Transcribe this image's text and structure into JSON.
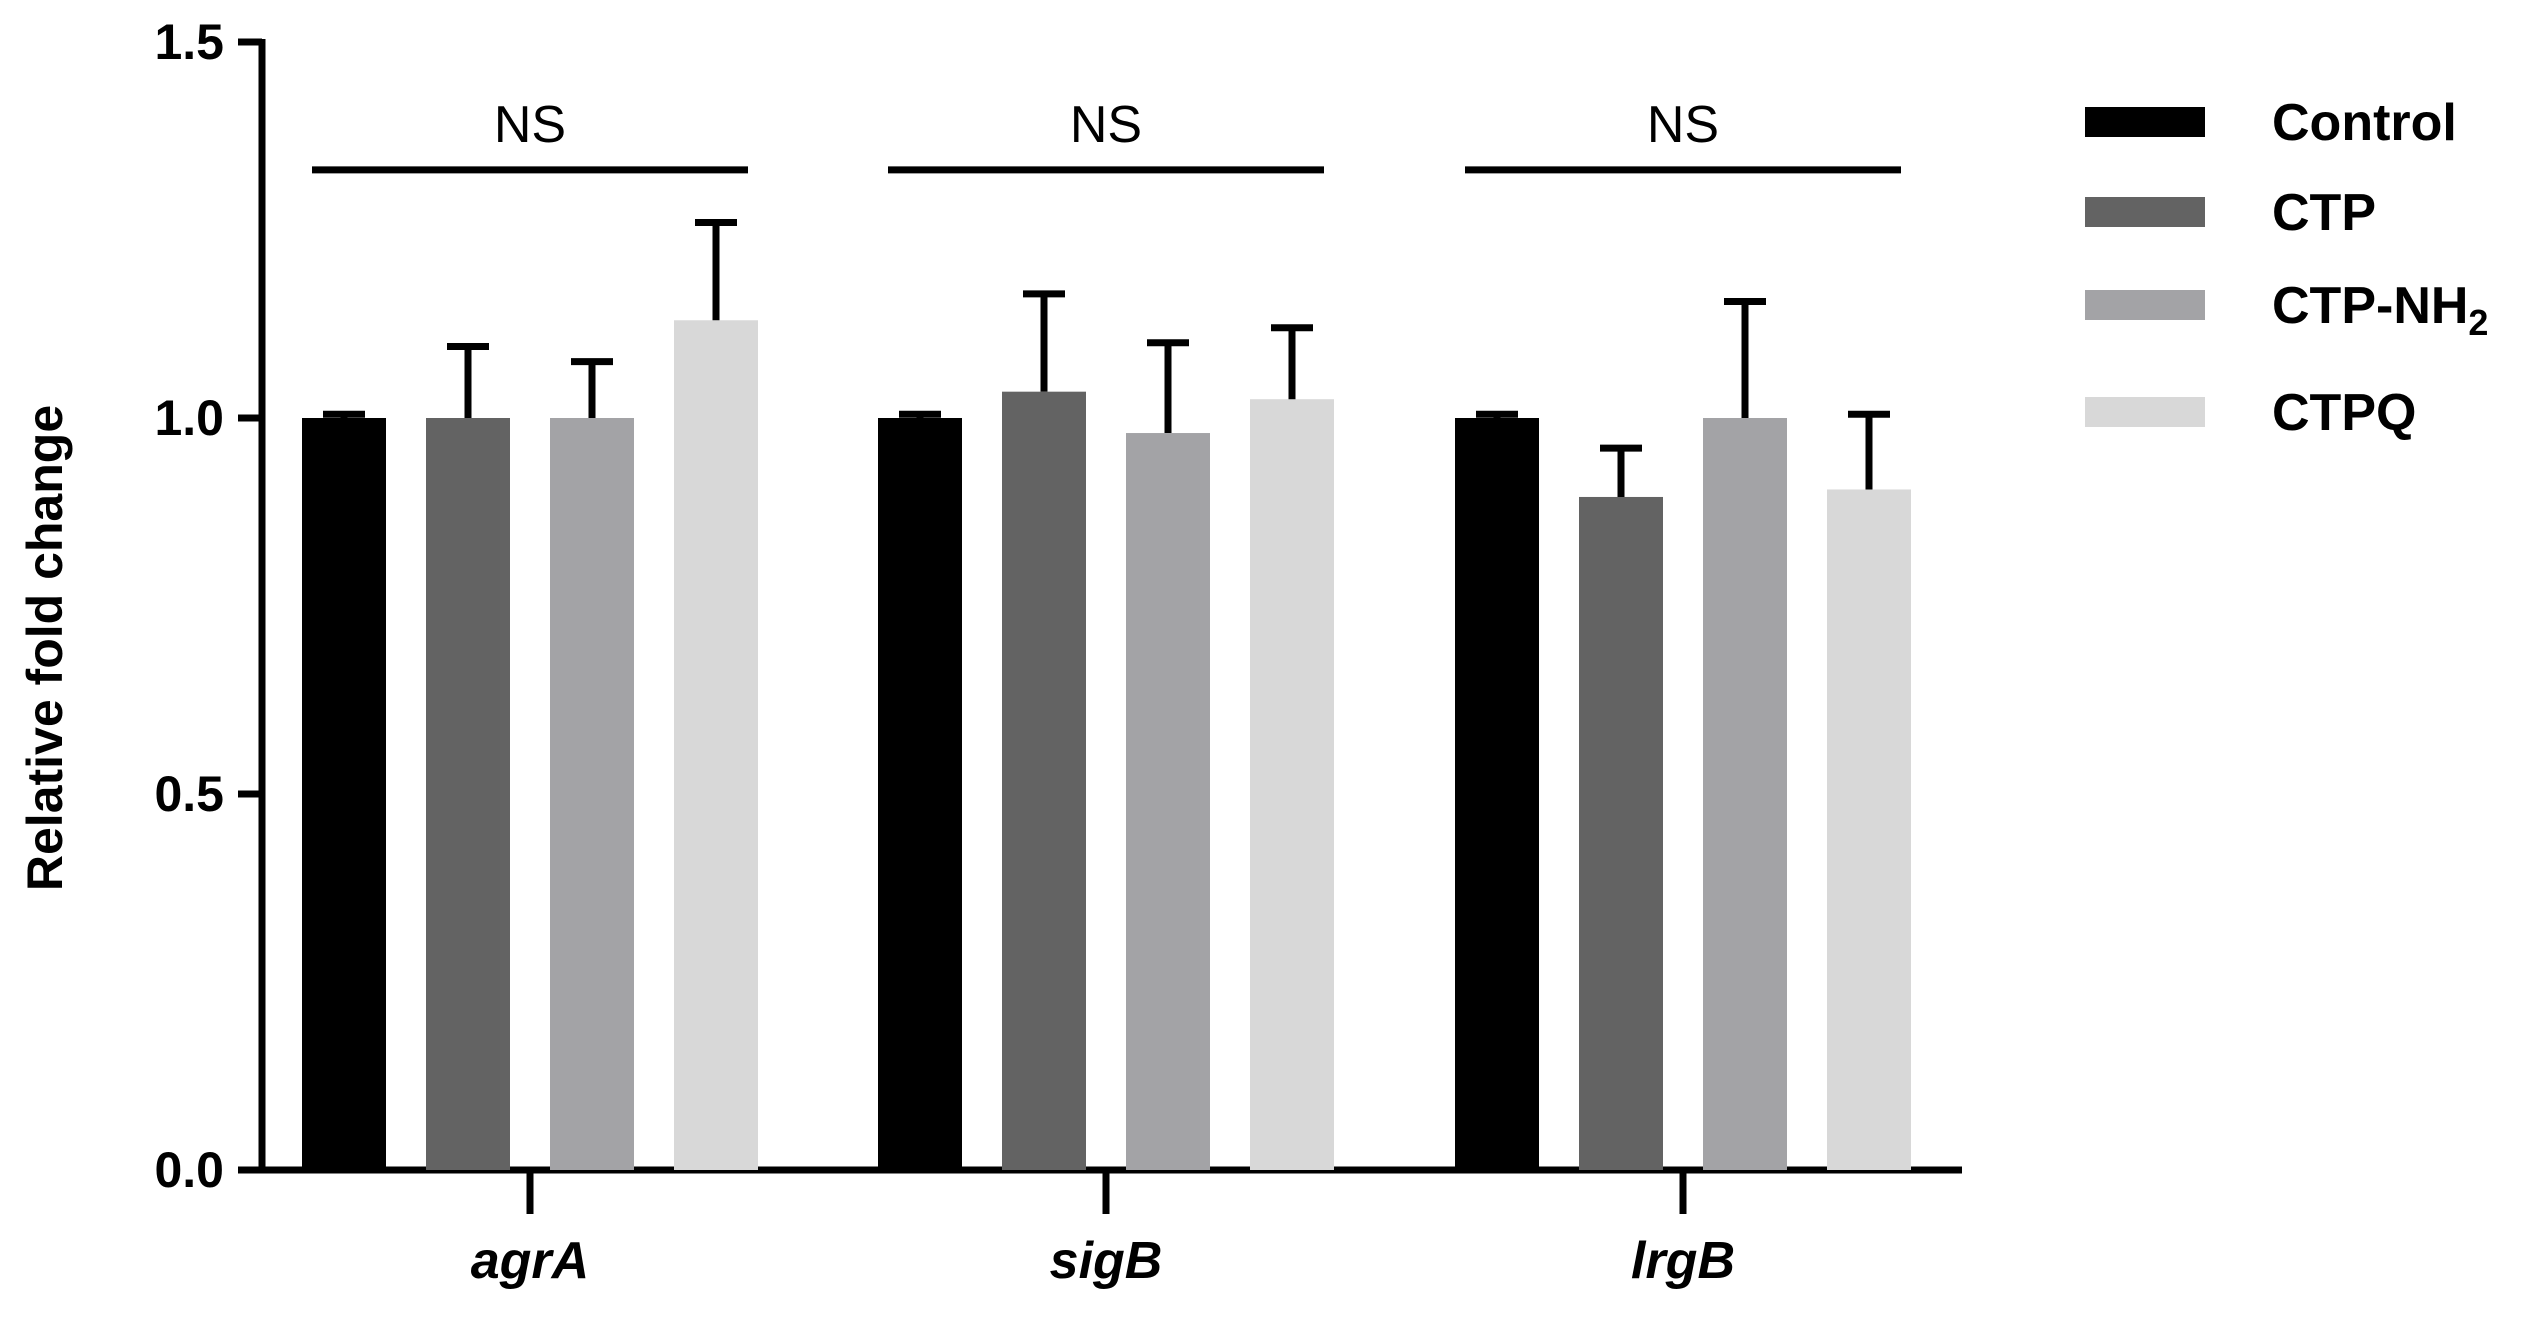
{
  "chart_data": {
    "type": "bar",
    "title": "",
    "xlabel": "",
    "ylabel": "Relative fold change",
    "ylim": [
      0,
      1.5
    ],
    "yticks": [
      0.0,
      0.5,
      1.0,
      1.5
    ],
    "ytick_labels": [
      "0.0",
      "0.5",
      "1.0",
      "1.5"
    ],
    "grid": false,
    "legend_position": "top-right",
    "categories": [
      "agrA",
      "sigB",
      "lrgB"
    ],
    "series": [
      {
        "name": "Control",
        "color": "#000000",
        "values": [
          1.0,
          1.0,
          1.0
        ],
        "errors": [
          0.005,
          0.005,
          0.005
        ]
      },
      {
        "name": "CTP",
        "color": "#636363",
        "values": [
          1.0,
          1.035,
          0.895
        ],
        "errors": [
          0.095,
          0.13,
          0.065
        ]
      },
      {
        "name": "CTP-NH",
        "name_subscript": "2",
        "color": "#a3a3a6",
        "values": [
          1.0,
          0.98,
          1.0
        ],
        "errors": [
          0.075,
          0.12,
          0.155
        ]
      },
      {
        "name": "CTPQ",
        "color": "#d8d8d8",
        "values": [
          1.13,
          1.025,
          0.905
        ],
        "errors": [
          0.13,
          0.095,
          0.1
        ]
      }
    ],
    "annotations": [
      {
        "category": "agrA",
        "text": "NS",
        "y": 1.33
      },
      {
        "category": "sigB",
        "text": "NS",
        "y": 1.33
      },
      {
        "category": "lrgB",
        "text": "NS",
        "y": 1.33
      }
    ]
  }
}
